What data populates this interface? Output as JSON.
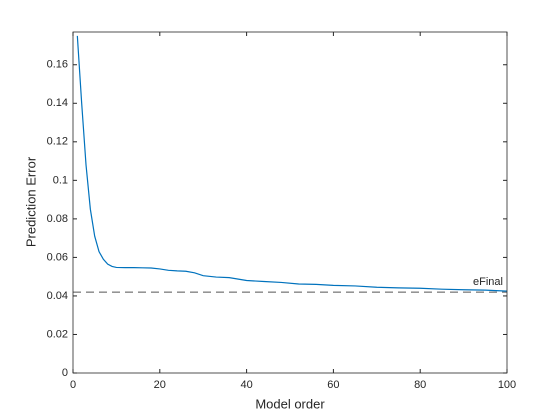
{
  "chart_data": {
    "type": "line",
    "xlabel": "Model order",
    "ylabel": "Prediction Error",
    "x": [
      1,
      2,
      3,
      4,
      5,
      6,
      7,
      8,
      9,
      10,
      12,
      14,
      16,
      18,
      20,
      22,
      24,
      26,
      28,
      30,
      33,
      36,
      40,
      44,
      48,
      52,
      56,
      60,
      65,
      70,
      75,
      80,
      85,
      90,
      95,
      100
    ],
    "series": [
      {
        "color": "#0072bd",
        "values": [
          0.175,
          0.14,
          0.108,
          0.085,
          0.071,
          0.063,
          0.059,
          0.0565,
          0.0553,
          0.0548,
          0.0547,
          0.0547,
          0.0546,
          0.0545,
          0.054,
          0.0533,
          0.053,
          0.0528,
          0.052,
          0.0505,
          0.0498,
          0.0495,
          0.048,
          0.0475,
          0.047,
          0.0462,
          0.046,
          0.0455,
          0.0452,
          0.0445,
          0.0442,
          0.044,
          0.0435,
          0.0432,
          0.043,
          0.0425
        ]
      }
    ],
    "reference_line": {
      "value": 0.042,
      "label": "eFinal",
      "color": "#555555"
    },
    "xlim": [
      0,
      100
    ],
    "xticks": [
      0,
      20,
      40,
      60,
      80,
      100
    ],
    "ylim": [
      0,
      0.177
    ],
    "yticks": [
      0,
      0.02,
      0.04,
      0.06,
      0.08,
      0.1,
      0.12,
      0.14,
      0.16
    ]
  }
}
